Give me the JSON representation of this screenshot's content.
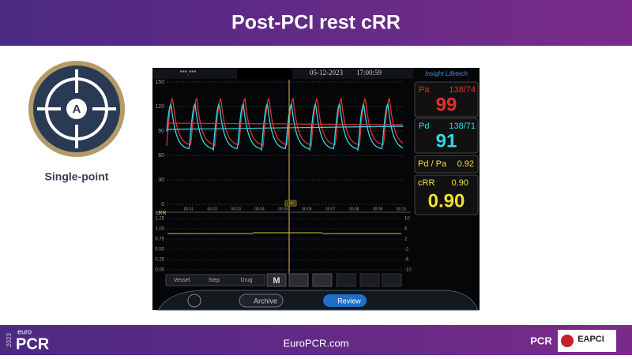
{
  "header": {
    "title": "Post-PCI rest cRR"
  },
  "badge": {
    "letter": "A",
    "label": "Single-point"
  },
  "monitor": {
    "device_id": "***.***",
    "date": "05-12-2023",
    "time": "17:00:59",
    "brand": "Insight Lifetech",
    "pressure_axis": [
      "150",
      "120",
      "90",
      "60",
      "30",
      "0"
    ],
    "time_axis": [
      "00:01",
      "00:02",
      "00:03",
      "00:04",
      "00:05",
      "00:06",
      "00:07",
      "00:08",
      "00:09",
      "00:10"
    ],
    "cursor_label": "cRR",
    "ratio_label": "cRR",
    "ratio_axis_left": [
      "1.25",
      "1.00",
      "0.75",
      "0.50",
      "0.25",
      "0.00"
    ],
    "ratio_axis_right": [
      "10",
      "6",
      "2",
      "-2",
      "-6",
      "-10"
    ],
    "pa": {
      "label": "Pa",
      "pressure": "138/74",
      "mean": "99"
    },
    "pd": {
      "label": "Pd",
      "pressure": "138/71",
      "mean": "91"
    },
    "pd_pa": {
      "label": "Pd / Pa",
      "value": "0.92"
    },
    "crr": {
      "label": "cRR",
      "small": "0.90",
      "big": "0.90"
    },
    "toolbar": [
      "Vessel",
      "Step",
      "Drug",
      "M"
    ],
    "buttons": {
      "archive": "Archive",
      "review": "Review"
    }
  },
  "footer": {
    "year": "2023",
    "euro": "euro",
    "pcr": "PCR",
    "url": "EuroPCR.com",
    "pcr_logo": "PCR",
    "eapci": "EAPCI"
  }
}
